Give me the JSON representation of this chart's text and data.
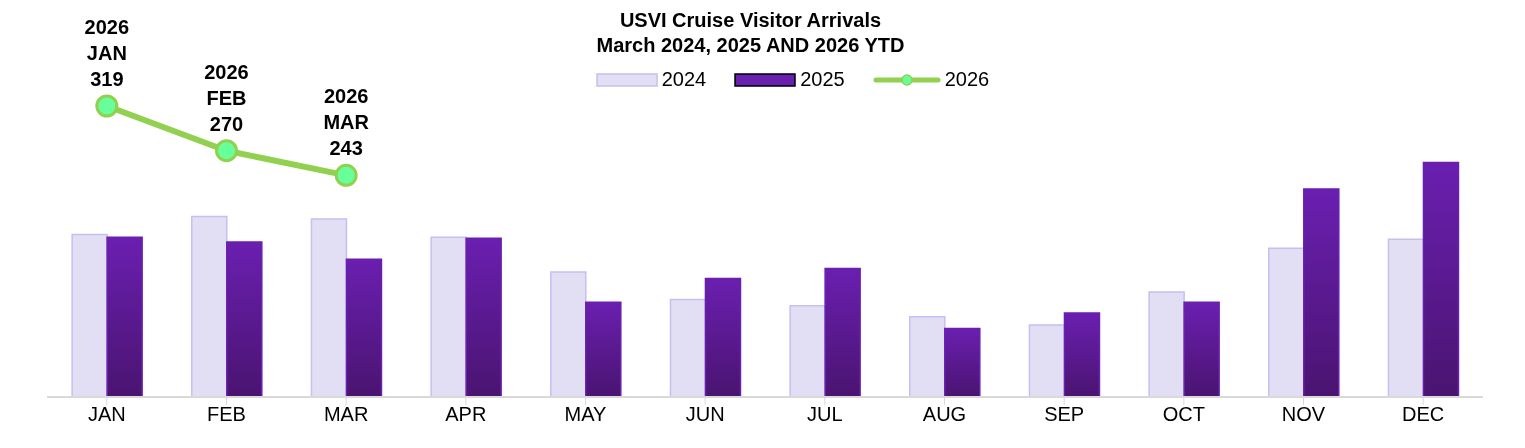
{
  "chart_data": {
    "type": "bar",
    "title": "USVI Cruise Visitor Arrivals\nMarch 2024, 2025 AND 2026 YTD",
    "categories": [
      "JAN",
      "FEB",
      "MAR",
      "APR",
      "MAY",
      "JUN",
      "JUL",
      "AUG",
      "SEP",
      "OCT",
      "NOV",
      "DEC"
    ],
    "series": [
      {
        "name": "2024",
        "color": "#e2dff5",
        "values": [
          178,
          198,
          195,
          175,
          137,
          107,
          100,
          88,
          79,
          115,
          163,
          173
        ]
      },
      {
        "name": "2025",
        "color": "#6a1fb0",
        "values": [
          175,
          170,
          151,
          174,
          104,
          130,
          141,
          75,
          92,
          104,
          228,
          257
        ]
      },
      {
        "name": "2026",
        "type": "line",
        "color": "#92d050",
        "values": [
          319,
          270,
          243,
          null,
          null,
          null,
          null,
          null,
          null,
          null,
          null,
          null
        ],
        "value_labels": [
          "2026\nJAN\n319",
          "2026\nFEB\n270",
          "2026\nMAR\n243",
          null,
          null,
          null,
          null,
          null,
          null,
          null,
          null,
          null
        ]
      }
    ],
    "tick_labels": "x",
    "legend": "top",
    "marker": "circle",
    "grid": false
  }
}
